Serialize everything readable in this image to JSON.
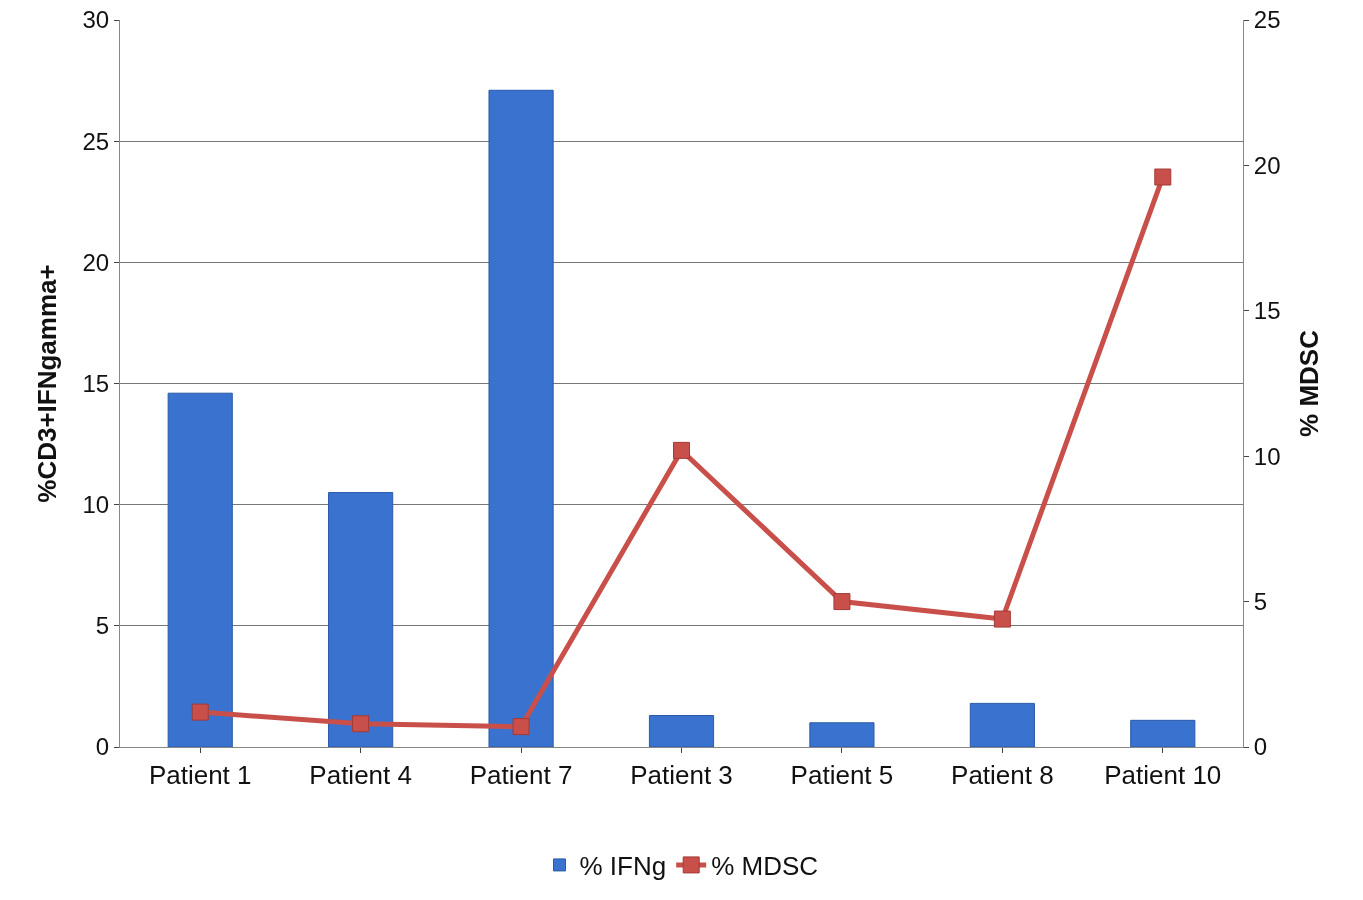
{
  "chart_data": {
    "type": "bar",
    "ylabel": "%CD3+IFNgamma+",
    "y2label": "% MDSC",
    "categories": [
      "Patient 1",
      "Patient 4",
      "Patient 7",
      "Patient 3",
      "Patient 5",
      "Patient 8",
      "Patient 10"
    ],
    "series": [
      {
        "name": "% IFNg",
        "color": "#3a72d0",
        "values": [
          14.6,
          10.5,
          27.1,
          1.3,
          1.0,
          1.8,
          1.1
        ]
      },
      {
        "name": "% MDSC",
        "type": "line",
        "axis": "y2",
        "color": "#c9504a",
        "marker": "square",
        "values": [
          1.2,
          0.8,
          0.7,
          10.2,
          5.0,
          4.4,
          19.6
        ]
      }
    ],
    "ylim": [
      0,
      30
    ],
    "yticks": [
      0,
      5,
      10,
      15,
      20,
      25,
      30
    ],
    "y2lim": [
      0,
      25
    ],
    "y2ticks": [
      0,
      5,
      10,
      15,
      20,
      25
    ],
    "grid": "y",
    "legend": "bottom"
  }
}
